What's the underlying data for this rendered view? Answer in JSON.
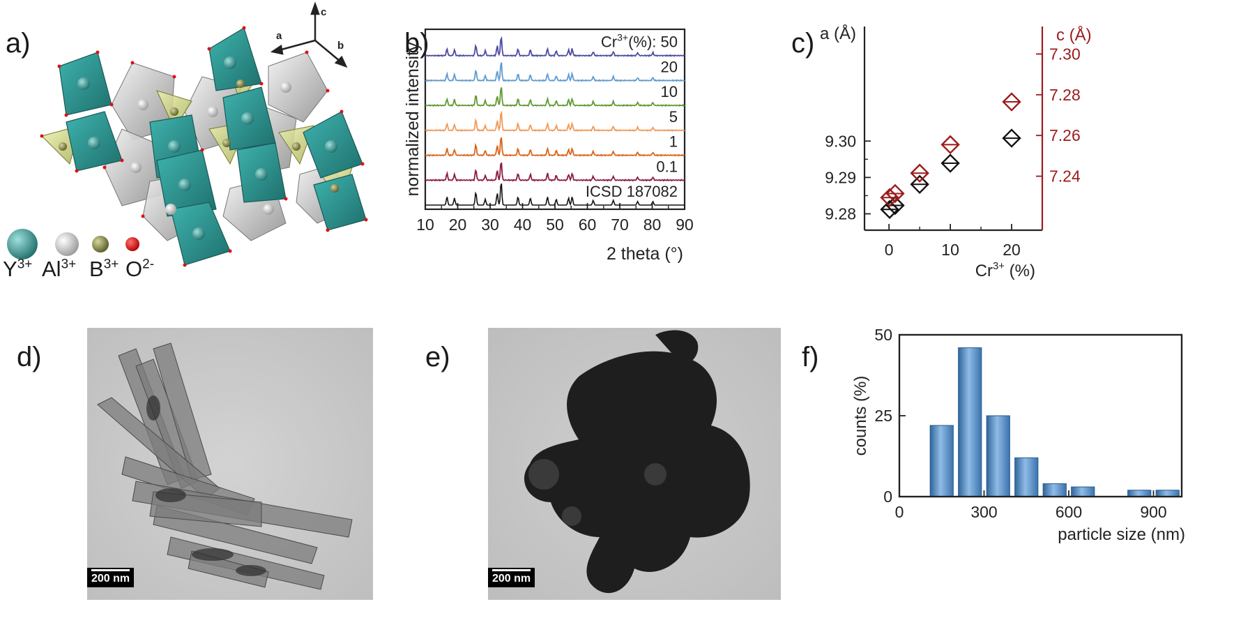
{
  "panels": {
    "a": "a)",
    "b": "b)",
    "c": "c)",
    "d": "d)",
    "e": "e)",
    "f": "f)"
  },
  "structure": {
    "axes": {
      "a": "a",
      "b": "b",
      "c": "c"
    },
    "ions": [
      {
        "sym": "Y",
        "charge": "3+",
        "color": "#2e8f8c"
      },
      {
        "sym": "Al",
        "charge": "3+",
        "color": "#d9d9d9"
      },
      {
        "sym": "B",
        "charge": "3+",
        "color": "#8a8a4a"
      },
      {
        "sym": "O",
        "charge": "2-",
        "color": "#e01010"
      }
    ]
  },
  "tem": {
    "d_scale": "200 nm",
    "e_scale": "200 nm"
  },
  "chart_data": [
    {
      "type": "line",
      "panel": "b",
      "ylabel": "normalized intensity",
      "xlabel": "2 theta (°)",
      "xlim": [
        10,
        90
      ],
      "xticks": [
        10,
        20,
        30,
        40,
        50,
        60,
        70,
        80,
        90
      ],
      "legend_title": "Cr3+(%):",
      "series": [
        {
          "name": "50",
          "color": "#4b4aa0"
        },
        {
          "name": "20",
          "color": "#5f9bd0"
        },
        {
          "name": "10",
          "color": "#5e9a32"
        },
        {
          "name": "5",
          "color": "#ef9a5a"
        },
        {
          "name": "1",
          "color": "#d8641a"
        },
        {
          "name": "0.1",
          "color": "#8c1a3d"
        },
        {
          "name": "ICSD 187082",
          "color": "#111111"
        }
      ],
      "peaks_2theta": [
        16.7,
        19.0,
        25.6,
        28.5,
        32.2,
        33.4,
        38.6,
        42.4,
        47.7,
        50.4,
        54.2,
        55.3,
        61.8,
        68.0,
        75.5,
        80.2
      ]
    },
    {
      "type": "scatter",
      "panel": "c",
      "xlabel": "Cr3+ (%)",
      "ylabel_left": "a (Å)",
      "ylabel_right": "c (Å)",
      "xlim": [
        -4,
        25
      ],
      "xticks": [
        0,
        10,
        20
      ],
      "ylim_left": [
        9.2755,
        9.3315
      ],
      "yticks_left": [
        9.28,
        9.29,
        9.3
      ],
      "ylim_right": [
        7.2135,
        7.3135
      ],
      "yticks_right": [
        7.24,
        7.26,
        7.28,
        7.3
      ],
      "series": [
        {
          "name": "a",
          "axis": "left",
          "color": "#111111",
          "x": [
            0.1,
            1,
            5,
            10,
            20
          ],
          "y": [
            9.2812,
            9.2823,
            9.2881,
            9.2939,
            9.3008
          ]
        },
        {
          "name": "c",
          "axis": "right",
          "color": "#9b1b1b",
          "x": [
            0.1,
            1,
            5,
            10,
            20
          ],
          "y": [
            7.2295,
            7.2315,
            7.2415,
            7.2555,
            7.2765
          ]
        }
      ]
    },
    {
      "type": "bar",
      "panel": "f",
      "xlabel": "particle size (nm)",
      "ylabel": "counts (%)",
      "xlim": [
        0,
        1000
      ],
      "xticks": [
        0,
        300,
        600,
        900
      ],
      "ylim": [
        0,
        50
      ],
      "yticks": [
        0,
        25,
        50
      ],
      "bin_width": 100,
      "bin_centers": [
        150,
        250,
        350,
        450,
        550,
        650,
        750,
        850,
        950
      ],
      "values": [
        22,
        46,
        25,
        12,
        4,
        3,
        0,
        2,
        2
      ],
      "color": "#4f86bf"
    }
  ]
}
